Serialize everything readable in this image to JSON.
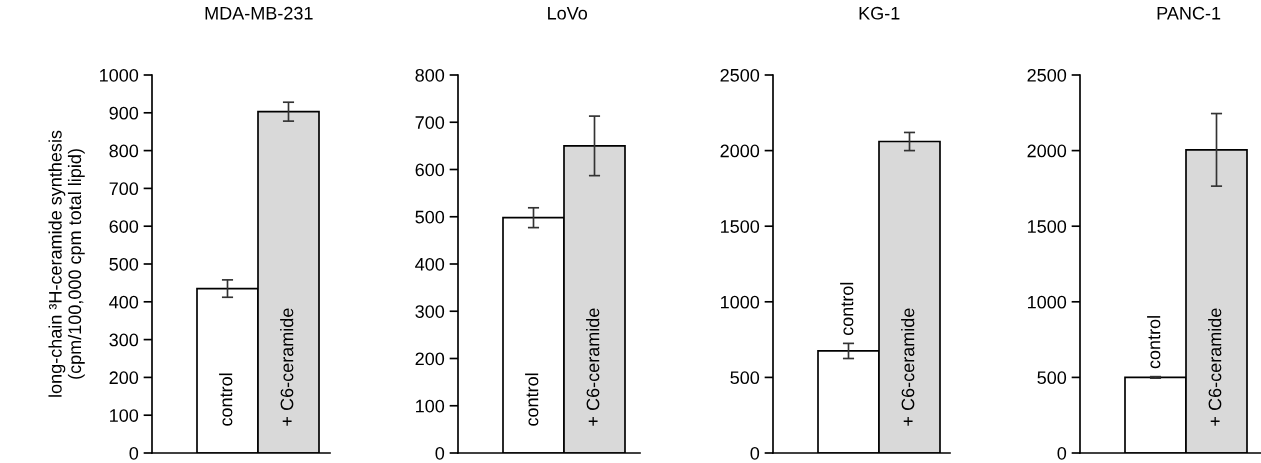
{
  "chart_data": [
    {
      "type": "bar",
      "title": "MDA-MB-231",
      "ylabel": "long-chain ³H-ceramide synthesis\n(cpm/100,000 cpm total lipid)",
      "categories": [
        "control",
        "+ C6-ceramide"
      ],
      "values": [
        435,
        903
      ],
      "errors": [
        23,
        25
      ],
      "colors": [
        "#ffffff",
        "#d9d9d9"
      ],
      "ylim": [
        0,
        1000
      ],
      "yticks": [
        0,
        100,
        200,
        300,
        400,
        500,
        600,
        700,
        800,
        900,
        1000
      ]
    },
    {
      "type": "bar",
      "title": "LoVo",
      "categories": [
        "control",
        "+ C6-ceramide"
      ],
      "values": [
        498,
        650
      ],
      "errors": [
        21,
        63
      ],
      "colors": [
        "#ffffff",
        "#d9d9d9"
      ],
      "ylim": [
        0,
        800
      ],
      "yticks": [
        0,
        100,
        200,
        300,
        400,
        500,
        600,
        700,
        800
      ]
    },
    {
      "type": "bar",
      "title": "KG-1",
      "categories": [
        "control",
        "+ C6-ceramide"
      ],
      "values": [
        675,
        2060
      ],
      "errors": [
        50,
        60
      ],
      "colors": [
        "#ffffff",
        "#d9d9d9"
      ],
      "ylim": [
        0,
        2500
      ],
      "yticks": [
        0,
        500,
        1000,
        1500,
        2000,
        2500
      ]
    },
    {
      "type": "bar",
      "title": "PANC-1",
      "categories": [
        "control",
        "+ C6-ceramide"
      ],
      "values": [
        500,
        2005
      ],
      "errors": [
        5,
        240
      ],
      "colors": [
        "#ffffff",
        "#d9d9d9"
      ],
      "ylim": [
        0,
        2500
      ],
      "yticks": [
        0,
        500,
        1000,
        1500,
        2000,
        2500
      ]
    }
  ]
}
